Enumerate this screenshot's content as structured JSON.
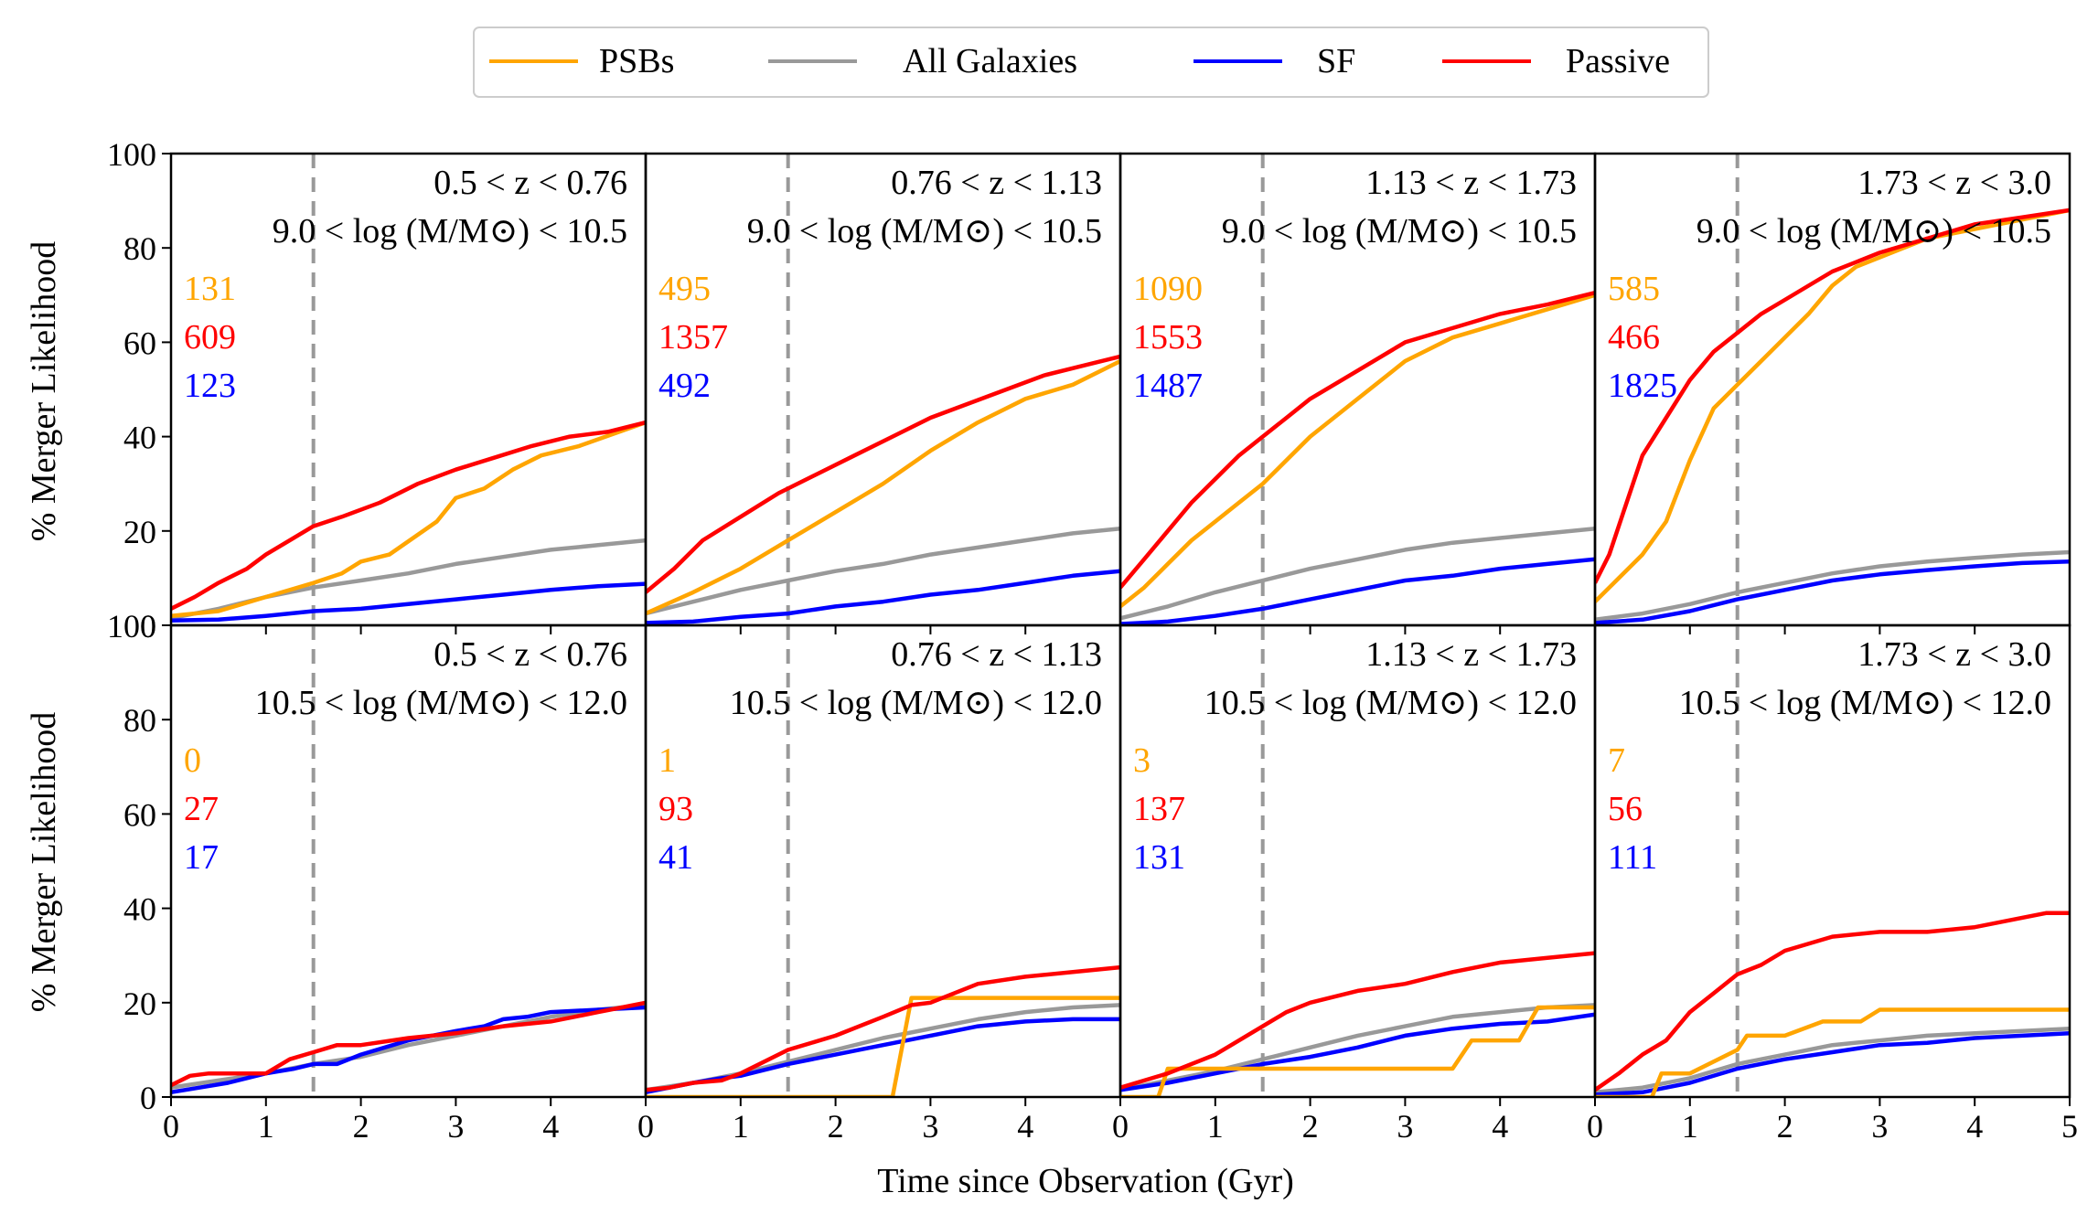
{
  "figure": {
    "ylabel": "% Merger Likelihood",
    "xlabel": "Time since Observation (Gyr)",
    "xlim": [
      0,
      5
    ],
    "ylim": [
      0,
      100
    ],
    "xticks": [
      "0",
      "1",
      "2",
      "3",
      "4"
    ],
    "xticks_last": [
      "0",
      "1",
      "2",
      "3",
      "4",
      "5"
    ],
    "yticks": [
      "0",
      "20",
      "40",
      "60",
      "80",
      "100"
    ],
    "vline_x": 1.5
  },
  "legend": [
    {
      "key": "psb",
      "label": "PSBs",
      "color": "#FFA500"
    },
    {
      "key": "all",
      "label": "All Galaxies",
      "color": "#999999"
    },
    {
      "key": "sf",
      "label": "SF",
      "color": "#0000FF"
    },
    {
      "key": "passive",
      "label": "Passive",
      "color": "#FF0000"
    }
  ],
  "chart_data": [
    {
      "type": "line",
      "row": 0,
      "col": 0,
      "title_z": "0.5 < z < 0.76",
      "title_m": "9.0 < log (M/M⊙) < 10.5",
      "counts": {
        "psb": "131",
        "passive": "609",
        "sf": "123"
      },
      "series": [
        {
          "key": "all",
          "x": [
            0,
            0.5,
            1,
            1.5,
            2,
            2.5,
            3,
            3.5,
            4,
            4.5,
            5
          ],
          "y": [
            1.5,
            3.5,
            6,
            8,
            9.5,
            11,
            13,
            14.5,
            16,
            17,
            18
          ]
        },
        {
          "key": "sf",
          "x": [
            0,
            0.5,
            1,
            1.5,
            2,
            2.5,
            3,
            3.5,
            4,
            4.5,
            5
          ],
          "y": [
            1,
            1.2,
            2,
            3,
            3.5,
            4.5,
            5.5,
            6.5,
            7.5,
            8.3,
            8.8
          ]
        },
        {
          "key": "psb",
          "x": [
            0,
            0.5,
            1,
            1.5,
            1.8,
            2,
            2.3,
            2.8,
            3,
            3.3,
            3.6,
            3.9,
            4.3,
            5
          ],
          "y": [
            2,
            3,
            6,
            9,
            11,
            13.5,
            15,
            22,
            27,
            29,
            33,
            36,
            38,
            43
          ]
        },
        {
          "key": "passive",
          "x": [
            0,
            0.25,
            0.5,
            0.8,
            1,
            1.25,
            1.5,
            1.8,
            2.2,
            2.6,
            3,
            3.4,
            3.8,
            4.2,
            4.6,
            5
          ],
          "y": [
            3.5,
            6,
            9,
            12,
            15,
            18,
            21,
            23,
            26,
            30,
            33,
            35.5,
            38,
            40,
            41,
            43
          ]
        }
      ]
    },
    {
      "type": "line",
      "row": 0,
      "col": 1,
      "title_z": "0.76 < z < 1.13",
      "title_m": "9.0 < log (M/M⊙) < 10.5",
      "counts": {
        "psb": "495",
        "passive": "1357",
        "sf": "492"
      },
      "series": [
        {
          "key": "all",
          "x": [
            0,
            0.5,
            1,
            1.5,
            2,
            2.5,
            3,
            3.5,
            4,
            4.5,
            5
          ],
          "y": [
            2.5,
            5,
            7.5,
            9.5,
            11.5,
            13,
            15,
            16.5,
            18,
            19.5,
            20.5
          ]
        },
        {
          "key": "sf",
          "x": [
            0,
            0.5,
            1,
            1.5,
            2,
            2.5,
            3,
            3.5,
            4,
            4.5,
            5
          ],
          "y": [
            0.5,
            0.8,
            1.8,
            2.5,
            4,
            5,
            6.5,
            7.5,
            9,
            10.5,
            11.5
          ]
        },
        {
          "key": "psb",
          "x": [
            0,
            0.5,
            1,
            1.5,
            2,
            2.5,
            3,
            3.5,
            4,
            4.5,
            5
          ],
          "y": [
            2.5,
            7,
            12,
            18,
            24,
            30,
            37,
            43,
            48,
            51,
            56
          ]
        },
        {
          "key": "passive",
          "x": [
            0,
            0.3,
            0.6,
            1,
            1.4,
            1.8,
            2.2,
            2.6,
            3,
            3.4,
            3.8,
            4.2,
            4.6,
            5
          ],
          "y": [
            7,
            12,
            18,
            23,
            28,
            32,
            36,
            40,
            44,
            47,
            50,
            53,
            55,
            57
          ]
        }
      ]
    },
    {
      "type": "line",
      "row": 0,
      "col": 2,
      "title_z": "1.13 < z < 1.73",
      "title_m": "9.0 < log (M/M⊙) < 10.5",
      "counts": {
        "psb": "1090",
        "passive": "1553",
        "sf": "1487"
      },
      "series": [
        {
          "key": "all",
          "x": [
            0,
            0.5,
            1,
            1.5,
            2,
            2.5,
            3,
            3.5,
            4,
            4.5,
            5
          ],
          "y": [
            1.5,
            4,
            7,
            9.5,
            12,
            14,
            16,
            17.5,
            18.5,
            19.5,
            20.5
          ]
        },
        {
          "key": "sf",
          "x": [
            0,
            0.5,
            1,
            1.5,
            2,
            2.5,
            3,
            3.5,
            4,
            4.5,
            5
          ],
          "y": [
            0.3,
            0.8,
            2,
            3.5,
            5.5,
            7.5,
            9.5,
            10.5,
            12,
            13,
            14
          ]
        },
        {
          "key": "psb",
          "x": [
            0,
            0.25,
            0.5,
            0.75,
            1,
            1.25,
            1.5,
            1.75,
            2,
            2.5,
            3,
            3.5,
            4,
            4.5,
            5
          ],
          "y": [
            4,
            8,
            13,
            18,
            22,
            26,
            30,
            35,
            40,
            48,
            56,
            61,
            64,
            67,
            70
          ]
        },
        {
          "key": "passive",
          "x": [
            0,
            0.25,
            0.5,
            0.75,
            1,
            1.25,
            1.5,
            1.75,
            2,
            2.5,
            3,
            3.5,
            4,
            4.5,
            5
          ],
          "y": [
            8,
            14,
            20,
            26,
            31,
            36,
            40,
            44,
            48,
            54,
            60,
            63,
            66,
            68,
            70.5
          ]
        }
      ]
    },
    {
      "type": "line",
      "row": 0,
      "col": 3,
      "title_z": "1.73 < z < 3.0",
      "title_m": "9.0 < log (M/M⊙) < 10.5",
      "counts": {
        "psb": "585",
        "passive": "466",
        "sf": "1825"
      },
      "series": [
        {
          "key": "all",
          "x": [
            0,
            0.5,
            1,
            1.5,
            2,
            2.5,
            3,
            3.5,
            4,
            4.5,
            5
          ],
          "y": [
            1.2,
            2.5,
            4.5,
            7,
            9,
            11,
            12.5,
            13.5,
            14.3,
            15,
            15.5
          ]
        },
        {
          "key": "sf",
          "x": [
            0,
            0.5,
            1,
            1.5,
            2,
            2.5,
            3,
            3.5,
            4,
            4.5,
            5
          ],
          "y": [
            0.5,
            1.2,
            3,
            5.5,
            7.5,
            9.5,
            10.8,
            11.7,
            12.5,
            13.2,
            13.5
          ]
        },
        {
          "key": "psb",
          "x": [
            0,
            0.25,
            0.5,
            0.75,
            1,
            1.25,
            1.5,
            1.75,
            2,
            2.25,
            2.5,
            2.75,
            3,
            3.5,
            4,
            4.5,
            5
          ],
          "y": [
            5,
            10,
            15,
            22,
            35,
            46,
            51,
            56,
            61,
            66,
            72,
            76,
            78,
            82,
            84,
            86,
            88
          ]
        },
        {
          "key": "passive",
          "x": [
            0,
            0.15,
            0.3,
            0.5,
            0.75,
            1,
            1.25,
            1.5,
            1.75,
            2,
            2.25,
            2.5,
            2.75,
            3,
            3.5,
            4,
            4.5,
            5
          ],
          "y": [
            9,
            15,
            24,
            36,
            44,
            52,
            58,
            62,
            66,
            69,
            72,
            75,
            77,
            79,
            82,
            85,
            86.5,
            88
          ]
        }
      ]
    },
    {
      "type": "line",
      "row": 1,
      "col": 0,
      "title_z": "0.5 < z < 0.76",
      "title_m": "10.5 < log (M/M⊙) < 12.0",
      "counts": {
        "psb": "0",
        "passive": "27",
        "sf": "17"
      },
      "series": [
        {
          "key": "all",
          "x": [
            0,
            0.5,
            1,
            1.5,
            2,
            2.5,
            3,
            3.5,
            4,
            4.5,
            5
          ],
          "y": [
            2,
            3.5,
            5,
            7,
            8.5,
            11,
            13,
            15,
            17,
            18.5,
            19.5
          ]
        },
        {
          "key": "sf",
          "x": [
            0,
            0.3,
            0.6,
            1,
            1.3,
            1.5,
            1.75,
            2,
            2.5,
            3,
            3.3,
            3.5,
            3.75,
            4,
            4.5,
            5
          ],
          "y": [
            1,
            2,
            3,
            5,
            6,
            7,
            7,
            9,
            12,
            14,
            15,
            16.5,
            17,
            18,
            18.5,
            19
          ]
        },
        {
          "key": "passive",
          "x": [
            0,
            0.2,
            0.4,
            0.6,
            1,
            1.25,
            1.5,
            1.75,
            2,
            2.5,
            3,
            3.5,
            4,
            4.25,
            4.5,
            4.75,
            5
          ],
          "y": [
            2.5,
            4.5,
            5,
            5,
            5,
            8,
            9.5,
            11,
            11,
            12.5,
            13.5,
            15,
            16,
            17,
            18,
            19,
            20
          ]
        }
      ]
    },
    {
      "type": "line",
      "row": 1,
      "col": 1,
      "title_z": "0.76 < z < 1.13",
      "title_m": "10.5 < log (M/M⊙) < 12.0",
      "counts": {
        "psb": "1",
        "passive": "93",
        "sf": "41"
      },
      "series": [
        {
          "key": "psb",
          "x": [
            0,
            2.6,
            2.8,
            5
          ],
          "y": [
            0,
            0,
            21,
            21
          ]
        },
        {
          "key": "all",
          "x": [
            0,
            0.5,
            1,
            1.5,
            2,
            2.5,
            3,
            3.5,
            4,
            4.5,
            5
          ],
          "y": [
            1.5,
            3,
            5,
            7.5,
            10,
            12.5,
            14.5,
            16.5,
            18,
            19,
            19.5
          ]
        },
        {
          "key": "sf",
          "x": [
            0,
            0.25,
            0.5,
            0.8,
            1,
            1.5,
            2,
            2.5,
            3,
            3.5,
            4,
            4.5,
            5
          ],
          "y": [
            1,
            2,
            3,
            4,
            4.5,
            7,
            9,
            11,
            13,
            15,
            16,
            16.5,
            16.5
          ]
        },
        {
          "key": "passive",
          "x": [
            0,
            0.25,
            0.5,
            0.8,
            1,
            1.5,
            2,
            2.5,
            2.8,
            3,
            3.5,
            4,
            4.5,
            5
          ],
          "y": [
            1.5,
            2,
            3,
            3.5,
            5,
            10,
            13,
            17,
            19.5,
            20,
            24,
            25.5,
            26.5,
            27.5
          ]
        }
      ]
    },
    {
      "type": "line",
      "row": 1,
      "col": 2,
      "title_z": "1.13 < z < 1.73",
      "title_m": "10.5 < log (M/M⊙) < 12.0",
      "counts": {
        "psb": "3",
        "passive": "137",
        "sf": "131"
      },
      "series": [
        {
          "key": "psb",
          "x": [
            0,
            0.4,
            0.5,
            3.5,
            3.7,
            4.2,
            4.4,
            5
          ],
          "y": [
            0,
            0,
            6,
            6,
            12,
            12,
            19,
            19
          ]
        },
        {
          "key": "all",
          "x": [
            0,
            0.5,
            1,
            1.5,
            2,
            2.5,
            3,
            3.5,
            4,
            4.5,
            5
          ],
          "y": [
            1.5,
            3.5,
            5.5,
            8,
            10.5,
            13,
            15,
            17,
            18,
            19,
            19.5
          ]
        },
        {
          "key": "sf",
          "x": [
            0,
            0.5,
            1,
            1.5,
            2,
            2.5,
            3,
            3.5,
            4,
            4.5,
            5
          ],
          "y": [
            1.5,
            3,
            5,
            7,
            8.5,
            10.5,
            13,
            14.5,
            15.5,
            16,
            17.5
          ]
        },
        {
          "key": "passive",
          "x": [
            0,
            0.5,
            1,
            1.25,
            1.5,
            1.75,
            2,
            2.5,
            3,
            3.5,
            4,
            4.5,
            5
          ],
          "y": [
            2,
            5,
            9,
            12,
            15,
            18,
            20,
            22.5,
            24,
            26.5,
            28.5,
            29.5,
            30.5
          ]
        }
      ]
    },
    {
      "type": "line",
      "row": 1,
      "col": 3,
      "title_z": "1.73 < z < 3.0",
      "title_m": "10.5 < log (M/M⊙) < 12.0",
      "counts": {
        "psb": "7",
        "passive": "56",
        "sf": "111"
      },
      "series": [
        {
          "key": "psb",
          "x": [
            0,
            0.6,
            0.7,
            1,
            1.5,
            1.6,
            2,
            2.4,
            2.8,
            3,
            5
          ],
          "y": [
            0,
            0,
            5,
            5,
            10,
            13,
            13,
            16,
            16,
            18.5,
            18.5
          ]
        },
        {
          "key": "all",
          "x": [
            0,
            0.5,
            1,
            1.5,
            2,
            2.5,
            3,
            3.5,
            4,
            4.5,
            5
          ],
          "y": [
            1,
            2,
            4,
            7,
            9,
            11,
            12,
            13,
            13.5,
            14,
            14.5
          ]
        },
        {
          "key": "sf",
          "x": [
            0,
            0.5,
            1,
            1.5,
            2,
            2.5,
            3,
            3.5,
            4,
            4.5,
            5
          ],
          "y": [
            0.5,
            1,
            3,
            6,
            8,
            9.5,
            11,
            11.5,
            12.5,
            13,
            13.5
          ]
        },
        {
          "key": "passive",
          "x": [
            0,
            0.25,
            0.5,
            0.75,
            1,
            1.25,
            1.5,
            1.75,
            2,
            2.5,
            3,
            3.5,
            4,
            4.5,
            4.75,
            5
          ],
          "y": [
            1.5,
            5,
            9,
            12,
            18,
            22,
            26,
            28,
            31,
            34,
            35,
            35,
            36,
            38,
            39,
            39
          ]
        }
      ]
    }
  ]
}
